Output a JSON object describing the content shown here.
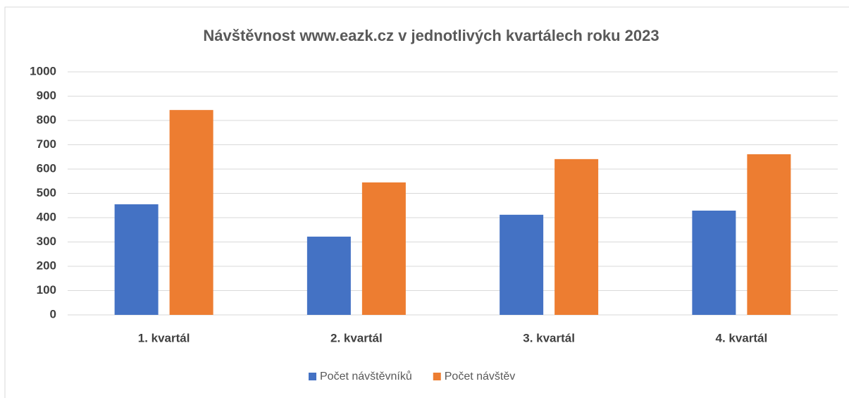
{
  "chart_data": {
    "type": "bar",
    "title": "Návštěvnost www.eazk.cz v jednotlivých kvartálech roku 2023",
    "categories": [
      "1. kvartál",
      "2. kvartál",
      "3. kvartál",
      "4. kvartál"
    ],
    "series": [
      {
        "name": "Počet návštěvníků",
        "color": "#4472c4",
        "values": [
          455,
          322,
          412,
          429
        ]
      },
      {
        "name": "Počet návštěv",
        "color": "#ed7d31",
        "values": [
          843,
          545,
          641,
          661
        ]
      }
    ],
    "ylim": [
      0,
      1000
    ],
    "yticks": [
      0,
      100,
      200,
      300,
      400,
      500,
      600,
      700,
      800,
      900,
      1000
    ],
    "grid": true
  }
}
